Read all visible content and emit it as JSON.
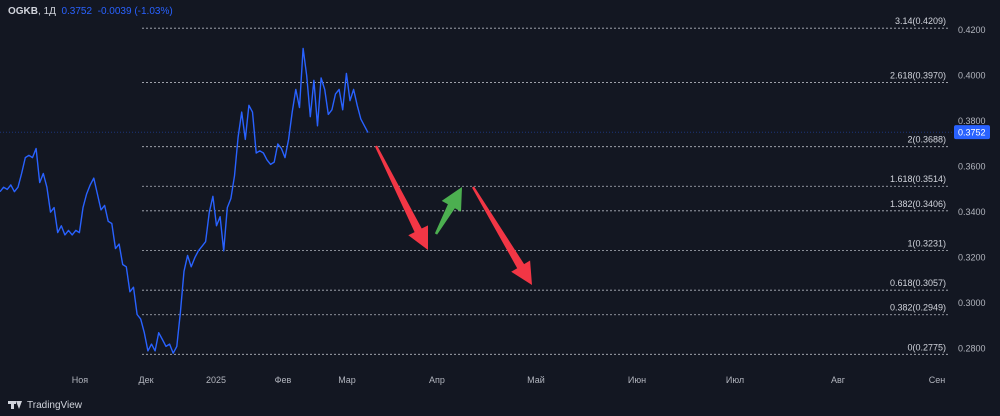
{
  "header": {
    "symbol": "OGKB",
    "interval": "1Д",
    "price": "0.3752",
    "change": "-0.0039 (-1.03%)"
  },
  "branding": {
    "name": "TradingView",
    "icon": "tradingview-logo-icon"
  },
  "colors": {
    "background": "#131722",
    "price_line": "#2962ff",
    "fib_line": "#b2b5be",
    "axis_text": "#b2b5be",
    "last_price_badge": "#2962ff",
    "arrow_down": "#f23645",
    "arrow_up": "#4caf50"
  },
  "chart_data": {
    "type": "line",
    "y_axis": {
      "min": 0.275,
      "max": 0.4245,
      "ticks": [
        "0.2800",
        "0.3000",
        "0.3200",
        "0.3400",
        "0.3600",
        "0.3800",
        "0.4000",
        "0.4200"
      ],
      "tick_values": [
        0.28,
        0.3,
        0.32,
        0.34,
        0.36,
        0.38,
        0.4,
        0.42
      ]
    },
    "x_axis": {
      "labels": [
        "Ноя",
        "Дек",
        "2025",
        "Фев",
        "Мар",
        "Апр",
        "Май",
        "Июн",
        "Июл",
        "Авг",
        "Сен"
      ]
    },
    "last_price": {
      "label": "0.3752",
      "value": 0.3752
    },
    "series": [
      {
        "values": [
          0.349,
          0.351,
          0.35,
          0.352,
          0.349,
          0.351,
          0.357,
          0.364,
          0.365,
          0.364,
          0.368,
          0.353,
          0.357,
          0.351,
          0.34,
          0.342,
          0.331,
          0.334,
          0.33,
          0.332,
          0.33,
          0.332,
          0.331,
          0.342,
          0.348,
          0.352,
          0.355,
          0.348,
          0.341,
          0.343,
          0.336,
          0.335,
          0.324,
          0.326,
          0.317,
          0.316,
          0.305,
          0.307,
          0.295,
          0.293,
          0.287,
          0.279,
          0.282,
          0.279,
          0.287,
          0.284,
          0.281,
          0.282,
          0.278,
          0.281,
          0.296,
          0.314,
          0.321,
          0.316,
          0.32,
          0.323,
          0.325,
          0.327,
          0.34,
          0.347,
          0.334,
          0.338,
          0.323,
          0.342,
          0.346,
          0.356,
          0.373,
          0.384,
          0.372,
          0.387,
          0.384,
          0.366,
          0.367,
          0.366,
          0.363,
          0.361,
          0.362,
          0.37,
          0.368,
          0.364,
          0.372,
          0.384,
          0.394,
          0.386,
          0.412,
          0.4,
          0.382,
          0.398,
          0.378,
          0.399,
          0.394,
          0.383,
          0.385,
          0.392,
          0.394,
          0.385,
          0.401,
          0.389,
          0.394,
          0.387,
          0.381,
          0.378,
          0.375
        ]
      }
    ],
    "fib_levels": [
      {
        "label": "0(0.2775)",
        "value": 0.2775
      },
      {
        "label": "0.382(0.2949)",
        "value": 0.2949
      },
      {
        "label": "0.618(0.3057)",
        "value": 0.3057
      },
      {
        "label": "1(0.3231)",
        "value": 0.3231
      },
      {
        "label": "1.382(0.3406)",
        "value": 0.3406
      },
      {
        "label": "1.618(0.3514)",
        "value": 0.3514
      },
      {
        "label": "2(0.3688)",
        "value": 0.3688
      },
      {
        "label": "2.618(0.3970)",
        "value": 0.397
      },
      {
        "label": "3.14(0.4209)",
        "value": 0.4209
      }
    ],
    "annotations": [
      {
        "type": "arrow",
        "direction": "down",
        "color": "#f23645"
      },
      {
        "type": "arrow",
        "direction": "up",
        "color": "#4caf50"
      },
      {
        "type": "arrow",
        "direction": "down",
        "color": "#f23645"
      }
    ],
    "grid": false
  }
}
